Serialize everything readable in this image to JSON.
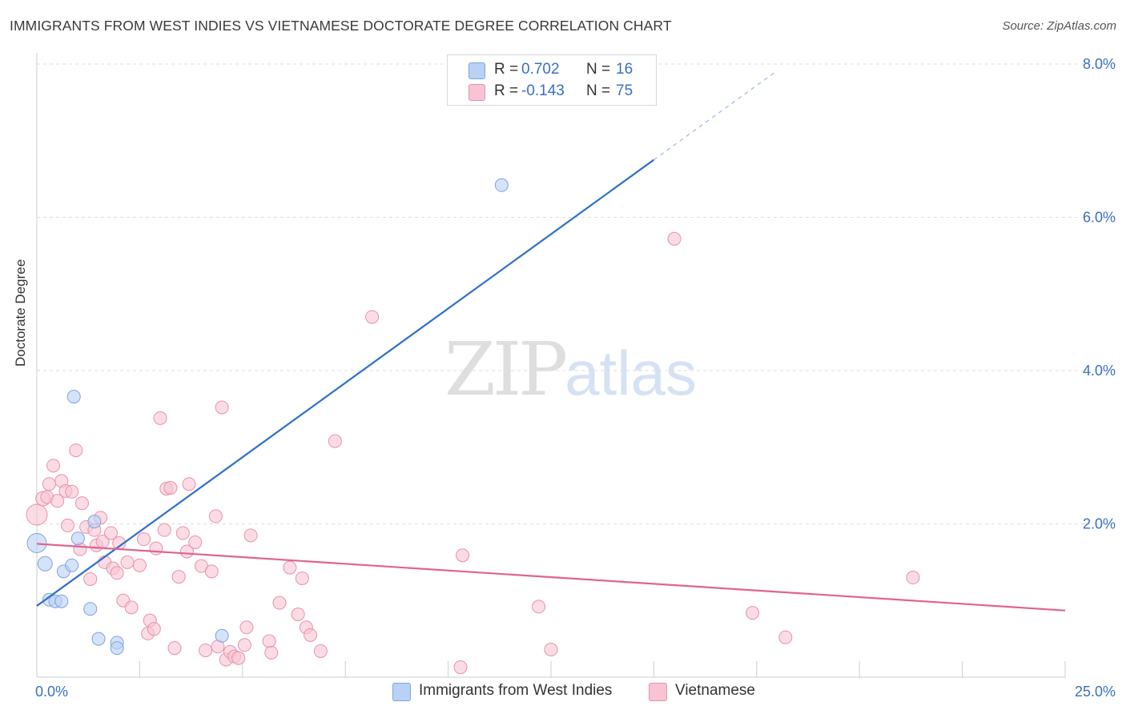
{
  "header": {
    "title": "IMMIGRANTS FROM WEST INDIES VS VIETNAMESE DOCTORATE DEGREE CORRELATION CHART",
    "source": "Source: ZipAtlas.com"
  },
  "watermark": {
    "zip": "ZIP",
    "atlas": "atlas"
  },
  "legend_top": [
    {
      "r_label": "R =",
      "r_value": "0.702",
      "n_label": "N =",
      "n_value": "16"
    },
    {
      "r_label": "R =",
      "r_value": "-0.143",
      "n_label": "N =",
      "n_value": "75"
    }
  ],
  "legend_bottom": [
    {
      "label": "Immigrants from West Indies"
    },
    {
      "label": "Vietnamese"
    }
  ],
  "colors": {
    "blue_fill": "#b9d1f5",
    "blue_stroke": "#7ea3dc",
    "blue_line": "#2f6fcc",
    "pink_fill": "#f8c4d4",
    "pink_stroke": "#e990ac",
    "pink_line": "#e0648e",
    "tick_label": "#3a6fc4",
    "grid": "#dddddd"
  },
  "chart_data": {
    "type": "scatter",
    "title": "IMMIGRANTS FROM WEST INDIES VS VIETNAMESE DOCTORATE DEGREE CORRELATION CHART",
    "xlabel": "",
    "ylabel": "Doctorate Degree",
    "xlim": [
      0,
      25
    ],
    "ylim": [
      0,
      8
    ],
    "x_tick_labels": [
      "0.0%",
      "25.0%"
    ],
    "y_ticks": [
      2,
      4,
      6,
      8
    ],
    "y_tick_labels": [
      "2.0%",
      "4.0%",
      "6.0%",
      "8.0%"
    ],
    "grid": true,
    "series": [
      {
        "name": "Immigrants from West Indies",
        "r": 0.702,
        "n": 16,
        "trend": {
          "x0": 0,
          "y0": 0.93,
          "x1": 15,
          "y1": 6.75,
          "dashed_to_x": 18.0
        },
        "points": [
          {
            "x": 0.0,
            "y": 1.75,
            "s": 22
          },
          {
            "x": 0.2,
            "y": 1.48,
            "s": 16
          },
          {
            "x": 0.3,
            "y": 1.01,
            "s": 14
          },
          {
            "x": 0.45,
            "y": 0.99,
            "s": 14
          },
          {
            "x": 0.6,
            "y": 0.99,
            "s": 14
          },
          {
            "x": 0.65,
            "y": 1.38,
            "s": 14
          },
          {
            "x": 0.85,
            "y": 1.46,
            "s": 14
          },
          {
            "x": 0.9,
            "y": 3.66,
            "s": 14
          },
          {
            "x": 1.0,
            "y": 1.81,
            "s": 14
          },
          {
            "x": 1.3,
            "y": 0.89,
            "s": 14
          },
          {
            "x": 1.4,
            "y": 2.03,
            "s": 14
          },
          {
            "x": 1.5,
            "y": 0.5,
            "s": 14
          },
          {
            "x": 1.95,
            "y": 0.45,
            "s": 14
          },
          {
            "x": 1.95,
            "y": 0.38,
            "s": 14
          },
          {
            "x": 4.5,
            "y": 0.54,
            "s": 14
          },
          {
            "x": 11.3,
            "y": 6.42,
            "s": 14
          }
        ]
      },
      {
        "name": "Vietnamese",
        "r": -0.143,
        "n": 75,
        "trend": {
          "x0": 0,
          "y0": 1.74,
          "x1": 25,
          "y1": 0.87
        },
        "points": [
          {
            "x": 0.0,
            "y": 2.12,
            "s": 24
          },
          {
            "x": 0.15,
            "y": 2.33,
            "s": 16
          },
          {
            "x": 0.25,
            "y": 2.35,
            "s": 14
          },
          {
            "x": 0.3,
            "y": 2.52,
            "s": 14
          },
          {
            "x": 0.4,
            "y": 2.76,
            "s": 14
          },
          {
            "x": 0.5,
            "y": 2.3,
            "s": 14
          },
          {
            "x": 0.6,
            "y": 2.56,
            "s": 14
          },
          {
            "x": 0.7,
            "y": 2.43,
            "s": 14
          },
          {
            "x": 0.75,
            "y": 1.98,
            "s": 14
          },
          {
            "x": 0.85,
            "y": 2.42,
            "s": 14
          },
          {
            "x": 0.95,
            "y": 2.96,
            "s": 14
          },
          {
            "x": 1.1,
            "y": 2.27,
            "s": 14
          },
          {
            "x": 1.05,
            "y": 1.67,
            "s": 14
          },
          {
            "x": 1.2,
            "y": 1.96,
            "s": 14
          },
          {
            "x": 1.3,
            "y": 1.28,
            "s": 14
          },
          {
            "x": 1.4,
            "y": 1.92,
            "s": 14
          },
          {
            "x": 1.45,
            "y": 1.72,
            "s": 14
          },
          {
            "x": 1.55,
            "y": 2.08,
            "s": 14
          },
          {
            "x": 1.6,
            "y": 1.77,
            "s": 14
          },
          {
            "x": 1.65,
            "y": 1.5,
            "s": 14
          },
          {
            "x": 1.8,
            "y": 1.88,
            "s": 14
          },
          {
            "x": 1.85,
            "y": 1.42,
            "s": 14
          },
          {
            "x": 1.95,
            "y": 1.36,
            "s": 14
          },
          {
            "x": 2.0,
            "y": 1.75,
            "s": 14
          },
          {
            "x": 2.1,
            "y": 1.0,
            "s": 14
          },
          {
            "x": 2.2,
            "y": 1.5,
            "s": 14
          },
          {
            "x": 2.3,
            "y": 0.91,
            "s": 14
          },
          {
            "x": 2.5,
            "y": 1.46,
            "s": 14
          },
          {
            "x": 2.6,
            "y": 1.8,
            "s": 14
          },
          {
            "x": 2.7,
            "y": 0.57,
            "s": 14
          },
          {
            "x": 2.75,
            "y": 0.74,
            "s": 14
          },
          {
            "x": 2.85,
            "y": 0.63,
            "s": 14
          },
          {
            "x": 2.9,
            "y": 1.68,
            "s": 14
          },
          {
            "x": 3.0,
            "y": 3.38,
            "s": 14
          },
          {
            "x": 3.1,
            "y": 1.92,
            "s": 14
          },
          {
            "x": 3.15,
            "y": 2.46,
            "s": 14
          },
          {
            "x": 3.25,
            "y": 2.47,
            "s": 14
          },
          {
            "x": 3.35,
            "y": 0.38,
            "s": 14
          },
          {
            "x": 3.45,
            "y": 1.31,
            "s": 14
          },
          {
            "x": 3.55,
            "y": 1.88,
            "s": 14
          },
          {
            "x": 3.65,
            "y": 1.64,
            "s": 14
          },
          {
            "x": 3.7,
            "y": 2.52,
            "s": 14
          },
          {
            "x": 3.85,
            "y": 1.76,
            "s": 14
          },
          {
            "x": 4.0,
            "y": 1.45,
            "s": 14
          },
          {
            "x": 4.1,
            "y": 0.35,
            "s": 14
          },
          {
            "x": 4.25,
            "y": 1.38,
            "s": 14
          },
          {
            "x": 4.35,
            "y": 2.1,
            "s": 14
          },
          {
            "x": 4.4,
            "y": 0.4,
            "s": 14
          },
          {
            "x": 4.5,
            "y": 3.52,
            "s": 14
          },
          {
            "x": 4.6,
            "y": 0.23,
            "s": 14
          },
          {
            "x": 4.7,
            "y": 0.33,
            "s": 14
          },
          {
            "x": 4.8,
            "y": 0.27,
            "s": 14
          },
          {
            "x": 4.9,
            "y": 0.25,
            "s": 14
          },
          {
            "x": 5.05,
            "y": 0.42,
            "s": 14
          },
          {
            "x": 5.1,
            "y": 0.65,
            "s": 14
          },
          {
            "x": 5.2,
            "y": 1.85,
            "s": 14
          },
          {
            "x": 5.65,
            "y": 0.47,
            "s": 14
          },
          {
            "x": 5.7,
            "y": 0.32,
            "s": 14
          },
          {
            "x": 5.9,
            "y": 0.97,
            "s": 14
          },
          {
            "x": 6.15,
            "y": 1.43,
            "s": 14
          },
          {
            "x": 6.35,
            "y": 0.82,
            "s": 14
          },
          {
            "x": 6.45,
            "y": 1.29,
            "s": 14
          },
          {
            "x": 6.55,
            "y": 0.65,
            "s": 14
          },
          {
            "x": 6.65,
            "y": 0.55,
            "s": 14
          },
          {
            "x": 6.9,
            "y": 0.34,
            "s": 14
          },
          {
            "x": 7.25,
            "y": 3.08,
            "s": 14
          },
          {
            "x": 8.15,
            "y": 4.7,
            "s": 14
          },
          {
            "x": 10.3,
            "y": 0.13,
            "s": 14
          },
          {
            "x": 10.35,
            "y": 1.59,
            "s": 14
          },
          {
            "x": 12.2,
            "y": 0.92,
            "s": 14
          },
          {
            "x": 12.5,
            "y": 0.36,
            "s": 14
          },
          {
            "x": 15.5,
            "y": 5.72,
            "s": 14
          },
          {
            "x": 17.4,
            "y": 0.84,
            "s": 14
          },
          {
            "x": 18.2,
            "y": 0.52,
            "s": 14
          },
          {
            "x": 21.3,
            "y": 1.3,
            "s": 14
          }
        ]
      }
    ]
  }
}
